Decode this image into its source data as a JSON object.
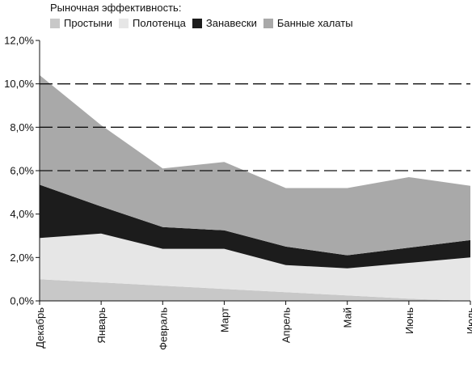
{
  "chart_data": {
    "type": "area",
    "stacked": true,
    "legend_title": "Рыночная эффективность:",
    "categories": [
      "Декабрь",
      "Январь",
      "Февраль",
      "Март",
      "Апрель",
      "Май",
      "Июнь",
      "Июль"
    ],
    "series": [
      {
        "name": "Простыни",
        "color": "#c8c8c8",
        "values": [
          1.0,
          0.85,
          0.7,
          0.55,
          0.4,
          0.25,
          0.1,
          0.0
        ]
      },
      {
        "name": "Полотенца",
        "color": "#e6e6e6",
        "values": [
          1.9,
          2.25,
          1.7,
          1.85,
          1.25,
          1.25,
          1.65,
          2.0
        ]
      },
      {
        "name": "Занавески",
        "color": "#1c1c1c",
        "values": [
          2.45,
          1.25,
          1.0,
          0.85,
          0.85,
          0.6,
          0.7,
          0.8
        ]
      },
      {
        "name": "Банные халаты",
        "color": "#a9a9a9",
        "values": [
          5.05,
          3.75,
          2.7,
          3.15,
          2.7,
          3.1,
          3.25,
          2.5
        ]
      }
    ],
    "yticks": [
      "0,0%",
      "2,0%",
      "4,0%",
      "6,0%",
      "8,0%",
      "10,0%",
      "12,0%"
    ],
    "ytick_values": [
      0,
      2,
      4,
      6,
      8,
      10,
      12
    ],
    "ylim": [
      0,
      12
    ],
    "dashed_gridlines": [
      6,
      8,
      10
    ],
    "legend_position": "top"
  }
}
